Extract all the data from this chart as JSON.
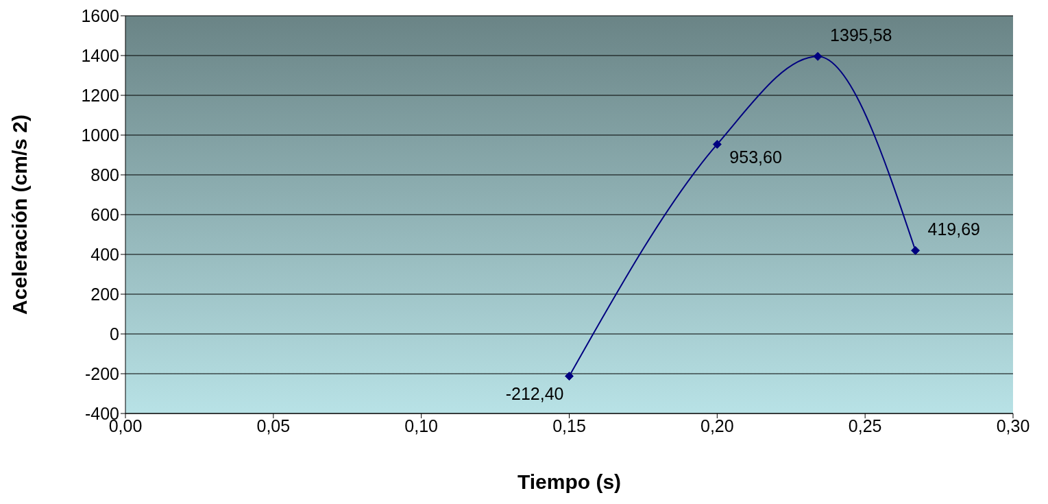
{
  "chart_data": {
    "type": "line",
    "xlabel": "Tiempo (s)",
    "ylabel": "Aceleración (cm/s 2)",
    "x": [
      0.15,
      0.2,
      0.234,
      0.267
    ],
    "series": [
      {
        "color": "#000080",
        "values": [
          -212.4,
          953.6,
          1395.58,
          419.69
        ],
        "value_labels": [
          "-212,40",
          "953,60",
          "1395,58",
          "419,69"
        ]
      }
    ],
    "xlim": [
      0,
      0.3
    ],
    "xticks": [
      {
        "value": 0,
        "label": "0,00"
      },
      {
        "value": 0.05,
        "label": "0,05"
      },
      {
        "value": 0.1,
        "label": "0,10"
      },
      {
        "value": 0.15,
        "label": "0,15"
      },
      {
        "value": 0.2,
        "label": "0,20"
      },
      {
        "value": 0.25,
        "label": "0,25"
      },
      {
        "value": 0.3,
        "label": "0,30"
      }
    ],
    "ylim": [
      -400,
      1600
    ],
    "yticks": [
      -400,
      -200,
      0,
      200,
      400,
      600,
      800,
      1000,
      1200,
      1400,
      1600
    ],
    "grid": "y",
    "legend": false,
    "marker": "diamond",
    "line_style": "solid"
  }
}
